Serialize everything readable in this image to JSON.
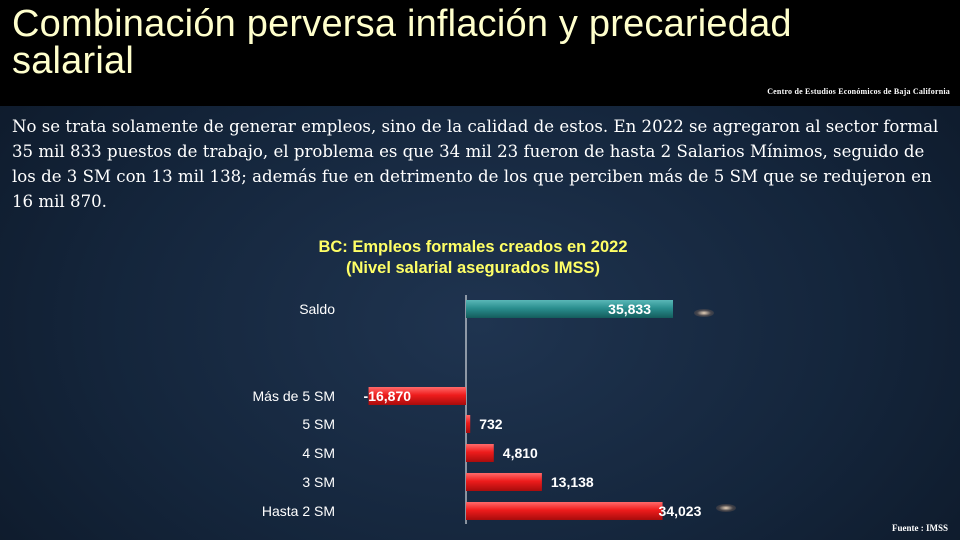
{
  "header": {
    "title": "Combinación perversa inflación y precariedad salarial",
    "source_top": "Centro de Estudios  Económicos  de Baja California"
  },
  "body_text": "No se trata solamente de generar empleos, sino de la calidad de estos. En 2022 se agregaron al sector formal 35 mil 833 puestos de trabajo, el problema es que 34 mil 23 fueron de hasta 2 Salarios Mínimos, seguido de los de 3 SM con 13 mil 138; además fue en detrimento de los que perciben más de 5 SM que se redujeron en 16 mil 870.",
  "footer": {
    "source": "Fuente : IMSS"
  },
  "chart_data": {
    "type": "bar",
    "orientation": "horizontal",
    "title": "BC: Empleos formales creados en 2022",
    "subtitle": "(Nivel salarial asegurados IMSS)",
    "categories": [
      "Saldo",
      "Más de 5 SM",
      "5 SM",
      "4 SM",
      "3 SM",
      "Hasta 2 SM"
    ],
    "values": [
      35833,
      -16870,
      732,
      4810,
      13138,
      34023
    ],
    "labels": [
      "35,833",
      "-16,870",
      "732",
      "4,810",
      "13,138",
      "34,023"
    ],
    "colors": [
      "#1f8080",
      "#e82020",
      "#e82020",
      "#e82020",
      "#e82020",
      "#e82020"
    ],
    "xlim": [
      -20000,
      37000
    ],
    "grid": false
  }
}
